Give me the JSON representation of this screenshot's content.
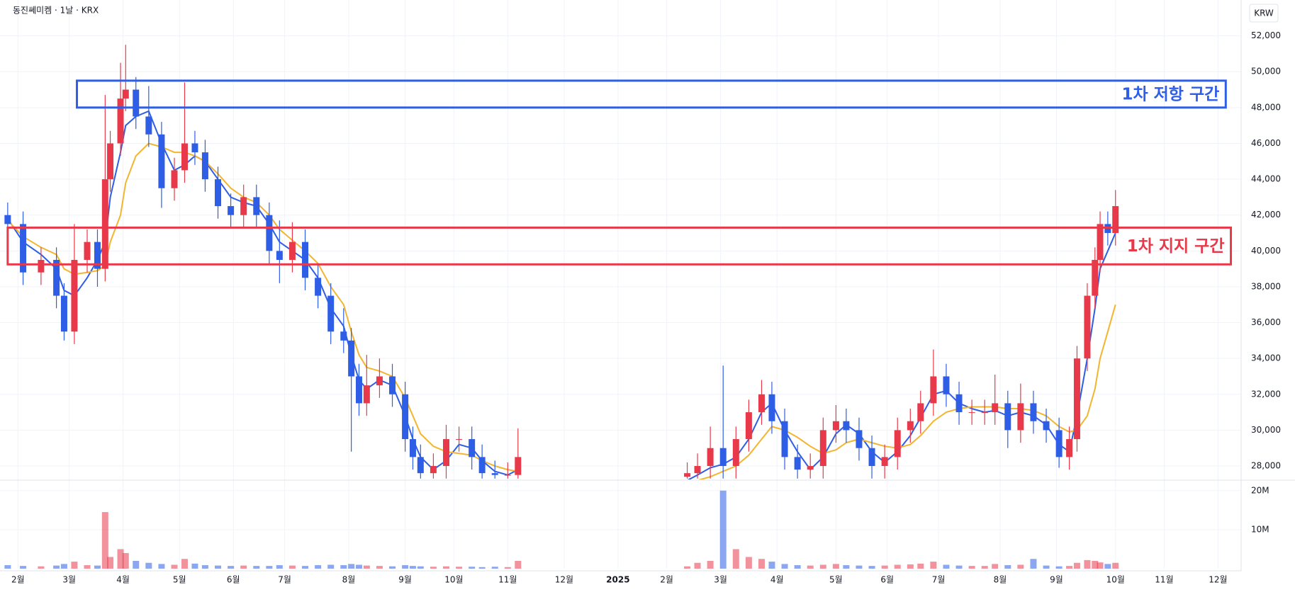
{
  "chart_data": {
    "type": "candlestick",
    "title": "동진쎄미켐 · 1날 · KRX",
    "currency": "KRW",
    "grid": true,
    "up_color": "#e8394a",
    "down_color": "#2e5ee6",
    "x": [
      0,
      6,
      13,
      19,
      22,
      26,
      31,
      35,
      38,
      40,
      44,
      46,
      50,
      55,
      60,
      65,
      69,
      73,
      77,
      82,
      87,
      92,
      97,
      102,
      106,
      111,
      116,
      121,
      126,
      131,
      134,
      137,
      140,
      145,
      150,
      155,
      158,
      161,
      166,
      171,
      176,
      181,
      185,
      190,
      195,
      199,
      265,
      269,
      274,
      279,
      284,
      289,
      294,
      298,
      303,
      308,
      313,
      318,
      323,
      327,
      332,
      337,
      342,
      347,
      352,
      356,
      361,
      366,
      371,
      376,
      381,
      385,
      390,
      395,
      400,
      405,
      410,
      414,
      417,
      421,
      424,
      426,
      429,
      432
    ],
    "open": [
      42000,
      41500,
      38800,
      39500,
      37500,
      35500,
      39500,
      40500,
      39000,
      44000,
      46000,
      48500,
      49000,
      47500,
      46500,
      43500,
      44500,
      46000,
      45500,
      44000,
      42500,
      42000,
      43000,
      42000,
      40000,
      39500,
      40500,
      38500,
      37500,
      35500,
      35000,
      33000,
      31500,
      32500,
      33000,
      32000,
      29500,
      28500,
      27600,
      28000,
      29500,
      29500,
      28500,
      27600,
      27500,
      27500,
      27400,
      27600,
      28000,
      29000,
      28000,
      29500,
      31000,
      32000,
      30500,
      28500,
      27800,
      28000,
      30000,
      30500,
      30000,
      29000,
      28000,
      28500,
      30000,
      30500,
      31500,
      33000,
      32000,
      31000,
      31000,
      31000,
      31500,
      30000,
      31500,
      30500,
      30000,
      28500,
      29500,
      34000,
      37500,
      39500,
      41500,
      41000
    ],
    "high": [
      42700,
      42200,
      40200,
      40200,
      38200,
      41500,
      41200,
      41200,
      48700,
      46700,
      50500,
      51500,
      49700,
      49200,
      47200,
      45200,
      49400,
      46700,
      46200,
      44700,
      43200,
      43700,
      43700,
      42700,
      41700,
      41600,
      41200,
      39200,
      38200,
      36800,
      35700,
      33700,
      34200,
      34000,
      33700,
      32700,
      30200,
      29200,
      28700,
      30300,
      30200,
      30200,
      29200,
      28300,
      28200,
      30100,
      28200,
      28700,
      30200,
      33600,
      30200,
      31700,
      32800,
      32700,
      31200,
      29200,
      28700,
      30700,
      31400,
      31200,
      30700,
      29700,
      29200,
      30700,
      31200,
      32200,
      34500,
      33700,
      32700,
      31700,
      31700,
      33100,
      32200,
      32600,
      32200,
      31200,
      30700,
      30200,
      34700,
      38200,
      40200,
      42200,
      42200,
      43400
    ],
    "low": [
      40800,
      38100,
      38100,
      36800,
      35000,
      34800,
      38800,
      38000,
      38300,
      43300,
      45300,
      47800,
      46800,
      45800,
      42400,
      42800,
      43800,
      44800,
      43300,
      41800,
      41300,
      41300,
      41300,
      39300,
      38200,
      38800,
      37800,
      36800,
      34800,
      34300,
      28800,
      30800,
      30800,
      31800,
      31300,
      28800,
      27800,
      27300,
      27300,
      27300,
      28800,
      27800,
      27300,
      27300,
      27300,
      27300,
      27300,
      27300,
      27300,
      27300,
      27300,
      28800,
      30300,
      29800,
      27800,
      27300,
      27300,
      27300,
      29300,
      29300,
      28300,
      27300,
      27300,
      27800,
      29300,
      29800,
      30800,
      31300,
      30300,
      30300,
      30300,
      30300,
      29000,
      29300,
      29800,
      29300,
      27900,
      27800,
      28800,
      33300,
      36800,
      38800,
      40300,
      40300
    ],
    "close": [
      41500,
      38800,
      39500,
      37500,
      35500,
      39500,
      40500,
      39000,
      44000,
      46000,
      48500,
      49000,
      47500,
      46500,
      43500,
      44500,
      46000,
      45500,
      44000,
      42500,
      42000,
      43000,
      42000,
      40000,
      39500,
      40500,
      38500,
      37500,
      35500,
      35000,
      33000,
      31500,
      32500,
      33000,
      32000,
      29500,
      28500,
      27600,
      28000,
      29500,
      29500,
      28500,
      27600,
      27500,
      27500,
      28500,
      27600,
      28000,
      29000,
      28000,
      29500,
      31000,
      32000,
      30500,
      28500,
      27800,
      28000,
      30000,
      30500,
      30000,
      29000,
      28000,
      28500,
      30000,
      30500,
      31500,
      33000,
      32000,
      31000,
      31000,
      31000,
      31500,
      30000,
      31500,
      30500,
      30000,
      28500,
      29500,
      34000,
      37500,
      39500,
      41500,
      41000,
      42500
    ],
    "volume": [
      900000,
      700000,
      600000,
      800000,
      1200000,
      1800000,
      900000,
      800000,
      14500000,
      3000000,
      5000000,
      4000000,
      2000000,
      1500000,
      1200000,
      1000000,
      2500000,
      1300000,
      900000,
      800000,
      700000,
      800000,
      700000,
      700000,
      900000,
      800000,
      700000,
      900000,
      1000000,
      900000,
      1200000,
      1000000,
      800000,
      700000,
      600000,
      900000,
      700000,
      600000,
      500000,
      600000,
      500000,
      500000,
      400000,
      500000,
      400000,
      2000000,
      600000,
      1500000,
      2000000,
      20000000,
      5000000,
      3000000,
      2500000,
      1800000,
      1200000,
      900000,
      800000,
      1000000,
      1200000,
      900000,
      800000,
      700000,
      800000,
      1000000,
      1100000,
      1300000,
      1800000,
      1000000,
      800000,
      700000,
      700000,
      1200000,
      900000,
      1000000,
      2500000,
      800000,
      600000,
      700000,
      1500000,
      2200000,
      2000000,
      1600000,
      1200000,
      1500000
    ],
    "lines": [
      {
        "color": "#2e5ee6",
        "values": [
          41800,
          40500,
          39800,
          39000,
          37800,
          37500,
          38500,
          39500,
          40500,
          43000,
          45500,
          47000,
          47500,
          47800,
          46000,
          44500,
          44800,
          45300,
          45000,
          44000,
          43000,
          42700,
          42500,
          41500,
          40500,
          40000,
          39500,
          38500,
          36800,
          35800,
          34200,
          32800,
          32300,
          32800,
          32500,
          30800,
          29500,
          28500,
          27800,
          28300,
          29200,
          29000,
          28300,
          27700,
          27500,
          27800,
          27200,
          27500,
          27900,
          28100,
          28500,
          29500,
          31000,
          31500,
          30000,
          28800,
          27800,
          28500,
          29800,
          30300,
          29800,
          28800,
          28200,
          28800,
          29700,
          30700,
          32000,
          32200,
          31500,
          31200,
          31000,
          31100,
          30800,
          31000,
          30800,
          30300,
          29200,
          28800,
          30800,
          34000,
          36800,
          39000,
          40000,
          41000
        ]
      },
      {
        "color": "#f2b530",
        "values": [
          41700,
          40800,
          40200,
          39800,
          39000,
          38700,
          38800,
          38900,
          39200,
          40500,
          42000,
          43800,
          45300,
          46000,
          45800,
          45500,
          45500,
          45300,
          45000,
          44300,
          43500,
          43000,
          42700,
          42000,
          41200,
          40600,
          40000,
          39300,
          38000,
          37000,
          35500,
          34200,
          33500,
          33300,
          33000,
          31800,
          30800,
          29800,
          29100,
          28800,
          28700,
          28600,
          28300,
          28000,
          27800,
          27700,
          27000,
          27200,
          27400,
          27700,
          28000,
          28600,
          29500,
          30200,
          30000,
          29600,
          29100,
          28700,
          28900,
          29300,
          29500,
          29300,
          29100,
          29000,
          29200,
          29700,
          30500,
          31000,
          31200,
          31300,
          31300,
          31300,
          31200,
          31200,
          31100,
          30800,
          30200,
          29900,
          30000,
          30800,
          32300,
          34000,
          35500,
          37000
        ]
      }
    ],
    "zones": [
      {
        "label": "1차 저항 구간",
        "color": "#2e5ee6",
        "xlim": [
          27,
          475
        ],
        "ylim": [
          48000,
          49500
        ]
      },
      {
        "label": "1차 지지 구간",
        "color": "#e8394a",
        "xlim": [
          0,
          477
        ],
        "ylim": [
          39250,
          41300
        ]
      }
    ],
    "xlim": [
      -3,
      481
    ],
    "ylim": [
      27250,
      54000
    ],
    "yticks": [
      {
        "value": 28000,
        "label": "28,000"
      },
      {
        "value": 30000,
        "label": "30,000"
      },
      {
        "value": 32000,
        "label": "32,000"
      },
      {
        "value": 34000,
        "label": "34,000"
      },
      {
        "value": 36000,
        "label": "36,000"
      },
      {
        "value": 38000,
        "label": "38,000"
      },
      {
        "value": 40000,
        "label": "40,000"
      },
      {
        "value": 42000,
        "label": "42,000"
      },
      {
        "value": 44000,
        "label": "44,000"
      },
      {
        "value": 46000,
        "label": "46,000"
      },
      {
        "value": 48000,
        "label": "48,000"
      },
      {
        "value": 50000,
        "label": "50,000"
      },
      {
        "value": 52000,
        "label": "52,000"
      }
    ],
    "volume_ylim": [
      0,
      22500000
    ],
    "volume_ticks": [
      {
        "value": 10000000,
        "label": "10M"
      },
      {
        "value": 20000000,
        "label": "20M"
      }
    ],
    "xticks": [
      {
        "value": 4,
        "label": "2월"
      },
      {
        "value": 24,
        "label": "3월"
      },
      {
        "value": 45,
        "label": "4월"
      },
      {
        "value": 67,
        "label": "5월"
      },
      {
        "value": 88,
        "label": "6월"
      },
      {
        "value": 108,
        "label": "7월"
      },
      {
        "value": 133,
        "label": "8월"
      },
      {
        "value": 155,
        "label": "9월"
      },
      {
        "value": 174,
        "label": "10월"
      },
      {
        "value": 195,
        "label": "11월"
      },
      {
        "value": 217,
        "label": "12월"
      },
      {
        "value": 238,
        "label": "2025"
      },
      {
        "value": 257,
        "label": "2월"
      },
      {
        "value": 278,
        "label": "3월"
      },
      {
        "value": 300,
        "label": "4월"
      },
      {
        "value": 323,
        "label": "5월"
      },
      {
        "value": 343,
        "label": "6월"
      },
      {
        "value": 363,
        "label": "7월"
      },
      {
        "value": 387,
        "label": "8월"
      },
      {
        "value": 409,
        "label": "9월"
      },
      {
        "value": 432,
        "label": "10월"
      },
      {
        "value": 451,
        "label": "11월"
      },
      {
        "value": 472,
        "label": "12월"
      }
    ]
  }
}
